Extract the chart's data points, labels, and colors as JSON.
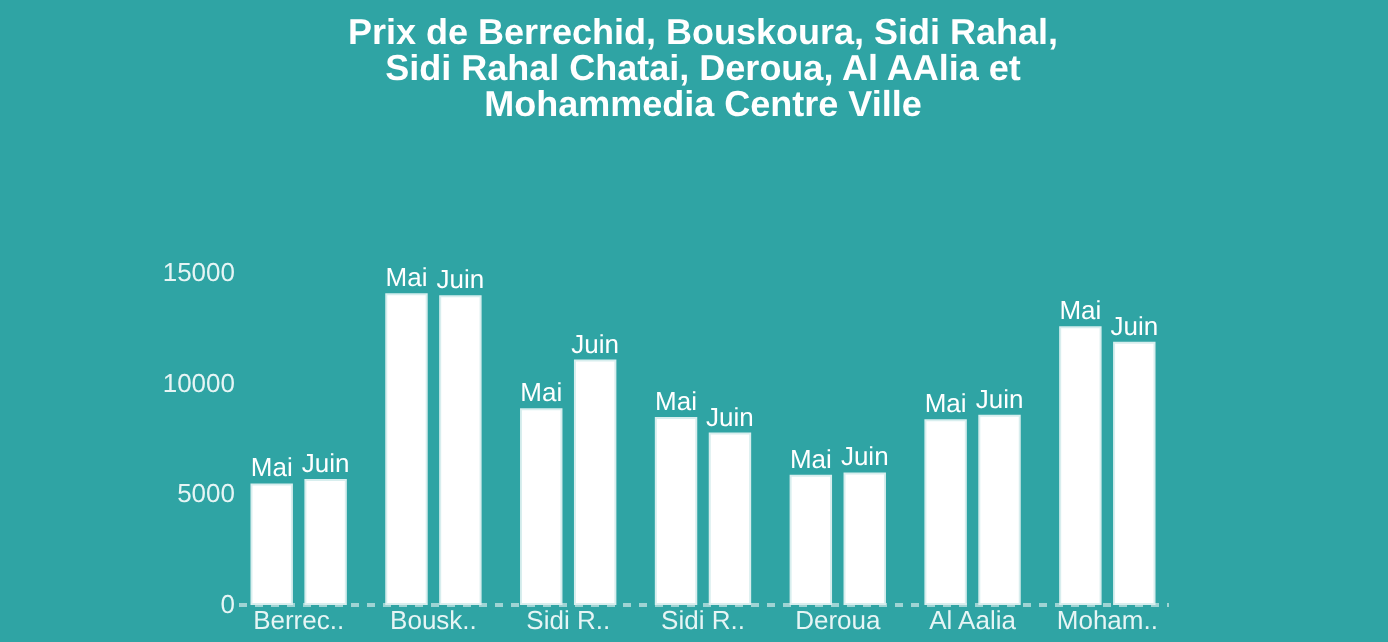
{
  "chart_data": {
    "type": "bar",
    "title": "Prix de Berrechid, Bouskoura, Sidi Rahal,\nSidi Rahal Chatai, Deroua, Al AAlia et\nMohammedia Centre Ville",
    "categories": [
      "Berrec..",
      "Bousk..",
      "Sidi R..",
      "Sidi R..",
      "Deroua",
      "Al Aalia",
      "Moham.."
    ],
    "series": [
      {
        "name": "Mai",
        "color": "#ffffff",
        "values": [
          5400,
          14000,
          8800,
          8400,
          5800,
          8300,
          12500
        ]
      },
      {
        "name": "Juin",
        "color": "#ffffff",
        "values": [
          5600,
          13900,
          11000,
          7700,
          5900,
          8500,
          11800
        ]
      }
    ],
    "ylim": [
      0,
      15000
    ],
    "yticks": [
      0,
      5000,
      10000,
      15000
    ],
    "grid": false,
    "legend": false
  }
}
